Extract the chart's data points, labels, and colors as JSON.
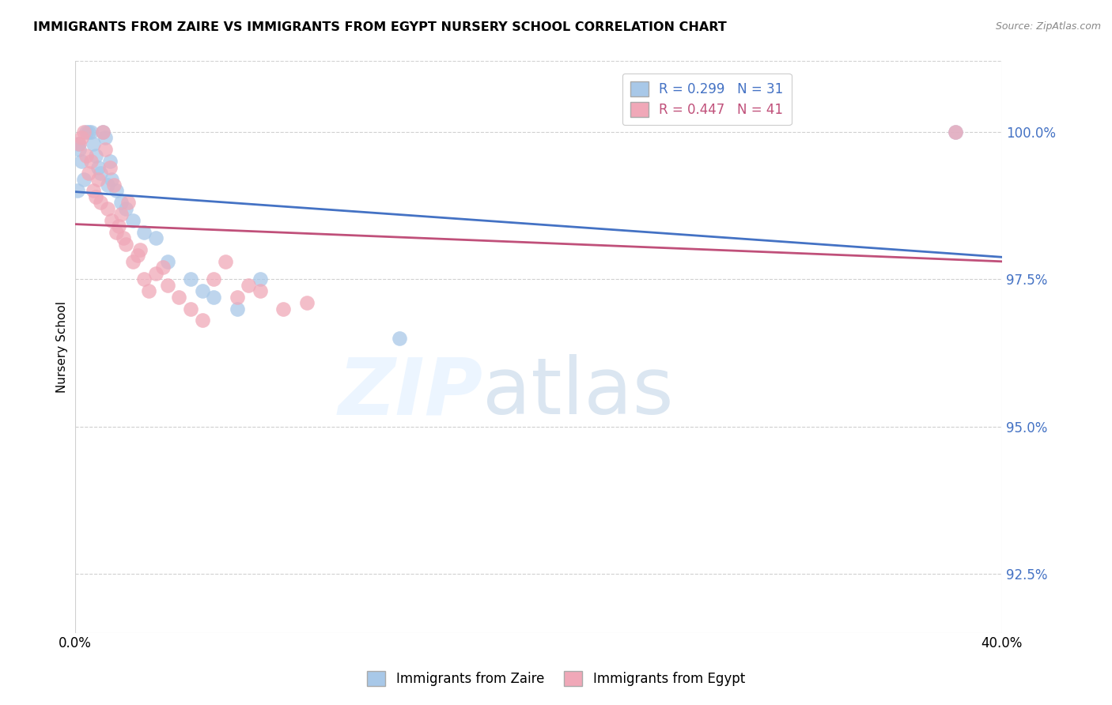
{
  "title": "IMMIGRANTS FROM ZAIRE VS IMMIGRANTS FROM EGYPT NURSERY SCHOOL CORRELATION CHART",
  "source": "Source: ZipAtlas.com",
  "ylabel": "Nursery School",
  "legend_zaire": "Immigrants from Zaire",
  "legend_egypt": "Immigrants from Egypt",
  "r_zaire": 0.299,
  "n_zaire": 31,
  "r_egypt": 0.447,
  "n_egypt": 41,
  "color_zaire": "#a8c8e8",
  "color_egypt": "#f0a8b8",
  "line_color_zaire": "#4472c4",
  "line_color_egypt": "#c0507a",
  "zaire_x": [
    0.1,
    0.2,
    0.3,
    0.4,
    0.5,
    0.6,
    0.7,
    0.8,
    0.9,
    1.0,
    1.1,
    1.2,
    1.3,
    1.4,
    1.5,
    1.6,
    1.8,
    2.0,
    2.2,
    2.5,
    3.0,
    3.5,
    4.0,
    5.0,
    5.5,
    6.0,
    7.0,
    8.0,
    14.0,
    0.15,
    38.0
  ],
  "zaire_y": [
    99.0,
    99.7,
    99.5,
    99.2,
    100.0,
    100.0,
    100.0,
    99.8,
    99.6,
    99.4,
    99.3,
    100.0,
    99.9,
    99.1,
    99.5,
    99.2,
    99.0,
    98.8,
    98.7,
    98.5,
    98.3,
    98.2,
    97.8,
    97.5,
    97.3,
    97.2,
    97.0,
    97.5,
    96.5,
    99.8,
    100.0
  ],
  "egypt_x": [
    0.2,
    0.4,
    0.5,
    0.6,
    0.7,
    0.8,
    1.0,
    1.1,
    1.2,
    1.3,
    1.4,
    1.5,
    1.6,
    1.7,
    1.8,
    2.0,
    2.1,
    2.3,
    2.5,
    2.8,
    3.0,
    3.2,
    3.5,
    4.0,
    4.5,
    5.0,
    5.5,
    6.0,
    7.0,
    8.0,
    9.0,
    10.0,
    0.3,
    0.9,
    1.9,
    2.2,
    2.7,
    3.8,
    6.5,
    7.5,
    38.0
  ],
  "egypt_y": [
    99.8,
    100.0,
    99.6,
    99.3,
    99.5,
    99.0,
    99.2,
    98.8,
    100.0,
    99.7,
    98.7,
    99.4,
    98.5,
    99.1,
    98.3,
    98.6,
    98.2,
    98.8,
    97.8,
    98.0,
    97.5,
    97.3,
    97.6,
    97.4,
    97.2,
    97.0,
    96.8,
    97.5,
    97.2,
    97.3,
    97.0,
    97.1,
    99.9,
    98.9,
    98.4,
    98.1,
    97.9,
    97.7,
    97.8,
    97.4,
    100.0
  ],
  "xlim": [
    0.0,
    40.0
  ],
  "ylim": [
    91.5,
    101.2
  ],
  "ytick_vals": [
    92.5,
    95.0,
    97.5,
    100.0
  ],
  "xtick_vals": [
    0.0,
    40.0
  ]
}
